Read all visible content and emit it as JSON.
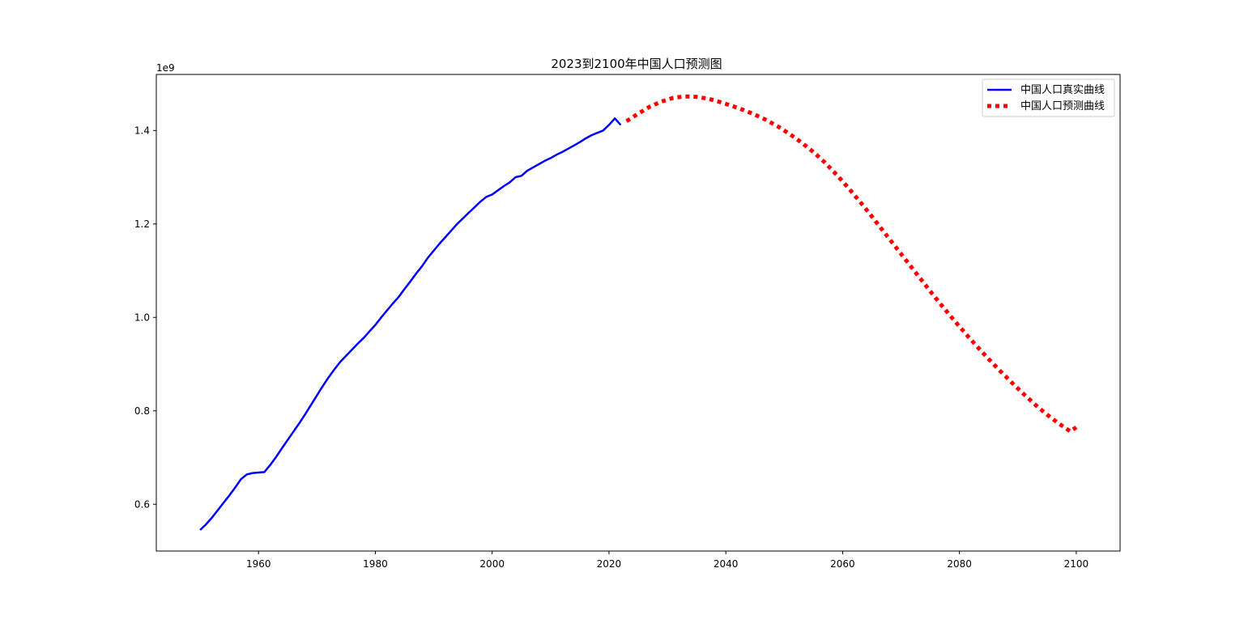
{
  "chart_data": {
    "type": "line",
    "title": "2023到2100年中国人口预测图",
    "xlabel": "",
    "ylabel": "",
    "y_offset_label": "1e9",
    "xlim": [
      1942.5,
      2107.5
    ],
    "ylim": [
      0.5,
      1.52
    ],
    "x_ticks": [
      1960,
      1980,
      2000,
      2020,
      2040,
      2060,
      2080,
      2100
    ],
    "x_tick_labels": [
      "1960",
      "1980",
      "2000",
      "2020",
      "2040",
      "2060",
      "2080",
      "2100"
    ],
    "y_ticks": [
      0.6,
      0.8,
      1.0,
      1.2,
      1.4
    ],
    "y_tick_labels": [
      "0.6",
      "0.8",
      "1.0",
      "1.2",
      "1.4"
    ],
    "grid": false,
    "legend_position": "top-right",
    "series": [
      {
        "name": "中国人口真实曲线",
        "color": "#0000ff",
        "style": "solid",
        "x": [
          1950,
          1951,
          1952,
          1953,
          1954,
          1955,
          1956,
          1957,
          1958,
          1959,
          1960,
          1961,
          1962,
          1963,
          1964,
          1965,
          1966,
          1967,
          1968,
          1969,
          1970,
          1971,
          1972,
          1973,
          1974,
          1975,
          1976,
          1977,
          1978,
          1979,
          1980,
          1981,
          1982,
          1983,
          1984,
          1985,
          1986,
          1987,
          1988,
          1989,
          1990,
          1991,
          1992,
          1993,
          1994,
          1995,
          1996,
          1997,
          1998,
          1999,
          2000,
          2001,
          2002,
          2003,
          2004,
          2005,
          2006,
          2007,
          2008,
          2009,
          2010,
          2011,
          2012,
          2013,
          2014,
          2015,
          2016,
          2017,
          2018,
          2019,
          2020,
          2021,
          2022
        ],
        "y": [
          0.545,
          0.557,
          0.571,
          0.587,
          0.603,
          0.619,
          0.636,
          0.654,
          0.664,
          0.667,
          0.668,
          0.669,
          0.684,
          0.701,
          0.72,
          0.738,
          0.756,
          0.774,
          0.793,
          0.813,
          0.833,
          0.853,
          0.872,
          0.889,
          0.905,
          0.918,
          0.931,
          0.944,
          0.956,
          0.97,
          0.984,
          1.0,
          1.015,
          1.03,
          1.044,
          1.061,
          1.077,
          1.094,
          1.11,
          1.128,
          1.143,
          1.158,
          1.172,
          1.186,
          1.2,
          1.212,
          1.224,
          1.236,
          1.248,
          1.258,
          1.263,
          1.272,
          1.281,
          1.289,
          1.3,
          1.303,
          1.314,
          1.321,
          1.328,
          1.335,
          1.341,
          1.348,
          1.354,
          1.361,
          1.368,
          1.375,
          1.383,
          1.39,
          1.395,
          1.4,
          1.412,
          1.426,
          1.412
        ]
      },
      {
        "name": "中国人口预测曲线",
        "color": "#ff0000",
        "style": "dotted",
        "x": [
          2023,
          2025,
          2027,
          2029,
          2031,
          2033,
          2035,
          2037,
          2039,
          2041,
          2043,
          2045,
          2047,
          2049,
          2051,
          2053,
          2055,
          2057,
          2059,
          2061,
          2063,
          2065,
          2067,
          2069,
          2071,
          2073,
          2075,
          2077,
          2079,
          2081,
          2083,
          2085,
          2087,
          2089,
          2091,
          2093,
          2095,
          2097,
          2099,
          2100
        ],
        "y": [
          1.42,
          1.436,
          1.451,
          1.462,
          1.47,
          1.473,
          1.472,
          1.468,
          1.461,
          1.453,
          1.444,
          1.434,
          1.422,
          1.408,
          1.392,
          1.374,
          1.354,
          1.331,
          1.305,
          1.277,
          1.247,
          1.216,
          1.184,
          1.152,
          1.12,
          1.088,
          1.056,
          1.025,
          0.995,
          0.966,
          0.938,
          0.911,
          0.885,
          0.86,
          0.836,
          0.813,
          0.792,
          0.773,
          0.756,
          0.765
        ]
      }
    ]
  }
}
